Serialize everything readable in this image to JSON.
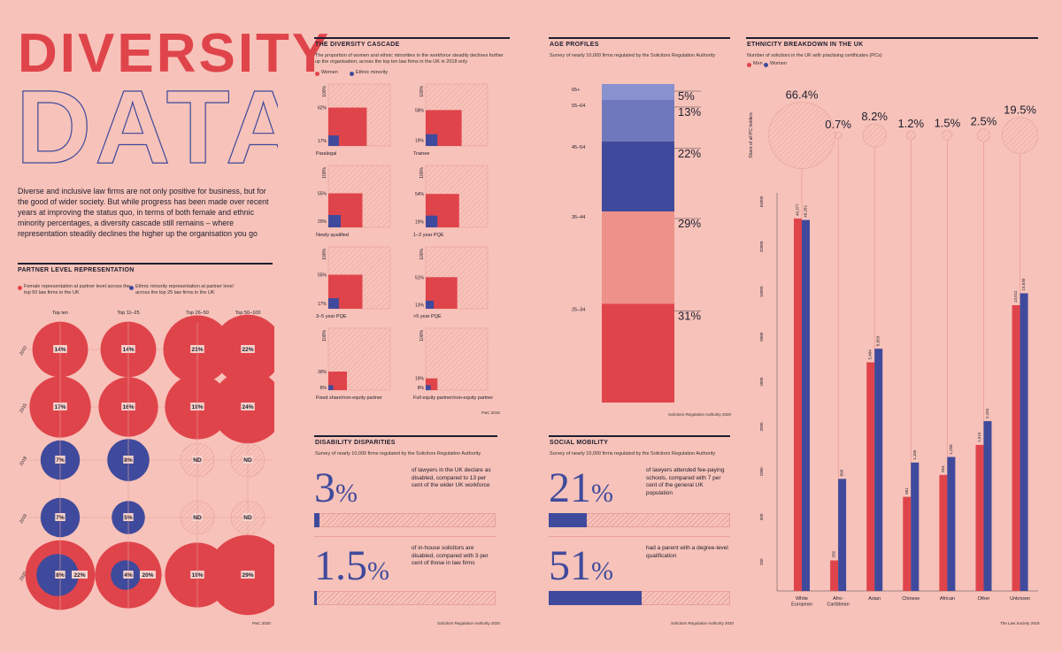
{
  "header": {
    "title_line1": "DIVERSITY",
    "title_line2": "DATA",
    "intro": "Diverse and inclusive law firms are not only positive for business, but for the good of wider society. But while progress has been made over recent years at improving the status quo, in terms of both female and ethnic minority percentages, a diversity cascade still remains – where representation steadily declines the higher up the organisation you go"
  },
  "colors": {
    "red": "#e0444b",
    "blue": "#3f4a9c",
    "bg": "#f7c2b9",
    "hatch": "#e7a29a"
  },
  "partner": {
    "title": "PARTNER LEVEL REPRESENTATION",
    "legend_red": "Female representation at partner level across the top 50 law firms in the UK",
    "legend_blue": "Ethnic minority representation at partner level across the top 25 law firms in the UK",
    "columns": [
      "Top ten",
      "Top 11–25",
      "Top 26–50",
      "Top 50–100"
    ],
    "source": "PwC 2020",
    "chart_data": {
      "type": "bubble",
      "rows": [
        {
          "year": "2010",
          "type": "female",
          "values": [
            "14%",
            "14%",
            "21%",
            "22%"
          ],
          "v": [
            14,
            14,
            21,
            22
          ]
        },
        {
          "year": "2015",
          "type": "female",
          "values": [
            "17%",
            "16%",
            "19%",
            "24%"
          ],
          "v": [
            17,
            16,
            19,
            24
          ]
        },
        {
          "year": "2018",
          "type": "ethnic",
          "values": [
            "7%",
            "8%",
            "ND",
            "ND"
          ],
          "v": [
            7,
            8,
            null,
            null
          ]
        },
        {
          "year": "2019",
          "type": "ethnic",
          "values": [
            "7%",
            "5%",
            "ND",
            "ND"
          ],
          "v": [
            7,
            5,
            null,
            null
          ]
        },
        {
          "year": "2020",
          "type": "both",
          "values": [
            "8%",
            "4%",
            "19%",
            "29%"
          ],
          "female_labels": [
            "22%",
            "20%",
            "",
            ""
          ],
          "v": [
            8,
            4,
            null,
            null
          ],
          "fv": [
            22,
            20,
            19,
            29
          ]
        }
      ]
    }
  },
  "cascade": {
    "title": "THE DIVERSITY CASCADE",
    "subtitle": "The proportion of women and ethnic minorities in the workforce steadily declines further up the organisation; across the top ten law firms in the UK in 2018 only",
    "legend": [
      "Women",
      "Ethnic minority"
    ],
    "source": "PwC 2018",
    "chart_data": {
      "type": "area",
      "items": [
        {
          "label": "Paralegal",
          "women": 62,
          "ethnic": 17,
          "wl": "62%",
          "el": "17%"
        },
        {
          "label": "Trainee",
          "women": 58,
          "ethnic": 19,
          "wl": "58%",
          "el": "19%"
        },
        {
          "label": "Newly qualified",
          "women": 55,
          "ethnic": 20,
          "wl": "55%",
          "el": "20%"
        },
        {
          "label": "1–2 year PQE",
          "women": 54,
          "ethnic": 19,
          "wl": "54%",
          "el": "19%"
        },
        {
          "label": "3–5 year PQE",
          "women": 55,
          "ethnic": 17,
          "wl": "55%",
          "el": "17%"
        },
        {
          "label": ">5 year PQE",
          "women": 51,
          "ethnic": 13,
          "wl": "51%",
          "el": "13%"
        },
        {
          "label": "Fixed share/non-equity partner",
          "women": 30,
          "ethnic": 8,
          "wl": "30%",
          "el": "8%"
        },
        {
          "label": "Full equity partner/non-equity partner",
          "women": 19,
          "ethnic": 8,
          "wl": "19%",
          "el": "8%"
        }
      ],
      "top_label": "100%"
    }
  },
  "age": {
    "title": "AGE PROFILES",
    "subtitle": "Survey of nearly 10,000 firms regulated by the Solicitors Regulation Authority",
    "source": "Solicitors Regulation Authority 2020",
    "chart_data": {
      "type": "stacked-bar",
      "segments": [
        {
          "label": "65+",
          "value": 5,
          "text": "5%",
          "color": "#8a91cf"
        },
        {
          "label": "55–64",
          "value": 13,
          "text": "13%",
          "color": "#6f78bd"
        },
        {
          "label": "45–54",
          "value": 22,
          "text": "22%",
          "color": "#3f4a9c"
        },
        {
          "label": "35–44",
          "value": 29,
          "text": "29%",
          "color": "#ee9188"
        },
        {
          "label": "25–34",
          "value": 31,
          "text": "31%",
          "color": "#e0444b"
        }
      ]
    }
  },
  "disability": {
    "title": "DISABILITY DISPARITIES",
    "subtitle": "Survey of nearly 10,000 firms regulated by the Solicitors Regulation Authority",
    "source": "Solicitors Regulation Authority 2020",
    "stats": [
      {
        "num": "3",
        "pct": "%",
        "text": "of lawyers in the UK declare as disabled, compared to 13 per cent of the wider UK workforce",
        "value": 3
      },
      {
        "num": "1.5",
        "pct": "%",
        "text": "of in-house solicitors are disabled, compared with 3 per cent of those in law firms",
        "value": 1.5
      }
    ]
  },
  "social": {
    "title": "SOCIAL MOBILITY",
    "subtitle": "Survey of nearly 10,000 firms regulated by the Solicitors Regulation Authority",
    "source": "Solicitors Regulation Authority 2020",
    "stats": [
      {
        "num": "21",
        "pct": "%",
        "text": "of lawyers attended fee-paying schools, compared with 7 per cent of the general UK population",
        "value": 21
      },
      {
        "num": "51",
        "pct": "%",
        "text": "had a parent with a degree-level qualification",
        "value": 51
      }
    ]
  },
  "ethnicity": {
    "title": "ETHNICITY BREAKDOWN IN THE UK",
    "subtitle": "Number of solicitors in the UK with practising certificates (PCs)",
    "legend": [
      "Men",
      "Women"
    ],
    "share_label": "Share of all PC holders",
    "source": "The Law Society 2019",
    "chart_data": {
      "type": "bar",
      "categories": [
        "White European",
        "Afro-Caribbean",
        "Asian",
        "Chinese",
        "African",
        "Other",
        "Unknown"
      ],
      "cat_lines": [
        [
          "White",
          "European"
        ],
        [
          "Afro-",
          "Caribbean"
        ],
        [
          "Asian"
        ],
        [
          "Chinese"
        ],
        [
          "African"
        ],
        [
          "Other"
        ],
        [
          "Unknown"
        ]
      ],
      "shares": [
        "66.4%",
        "0.7%",
        "8.2%",
        "1.2%",
        "1.5%",
        "2.5%",
        "19.5%"
      ],
      "share_values": [
        66.4,
        0.7,
        8.2,
        1.2,
        1.5,
        2.5,
        19.5
      ],
      "series": [
        {
          "name": "Men",
          "values": [
            49377,
            256,
            5404,
            681,
            954,
            1515,
            13011
          ],
          "labels": [
            "49,377",
            "256",
            "5,404",
            "681",
            "954",
            "1,515",
            "13,011"
          ]
        },
        {
          "name": "Women",
          "values": [
            48281,
            898,
            6659,
            1155,
            1258,
            2184,
            15630
          ],
          "labels": [
            "48,281",
            "898",
            "6,659",
            "1,155",
            "1,258",
            "2,184",
            "15,630"
          ]
        }
      ],
      "ticks": [
        "250",
        "500",
        "1000",
        "2000",
        "4000",
        "8000",
        "16000",
        "32000",
        "64000"
      ],
      "tick_values": [
        250,
        500,
        1000,
        2000,
        4000,
        8000,
        16000,
        32000,
        64000
      ],
      "scale": "log"
    }
  }
}
